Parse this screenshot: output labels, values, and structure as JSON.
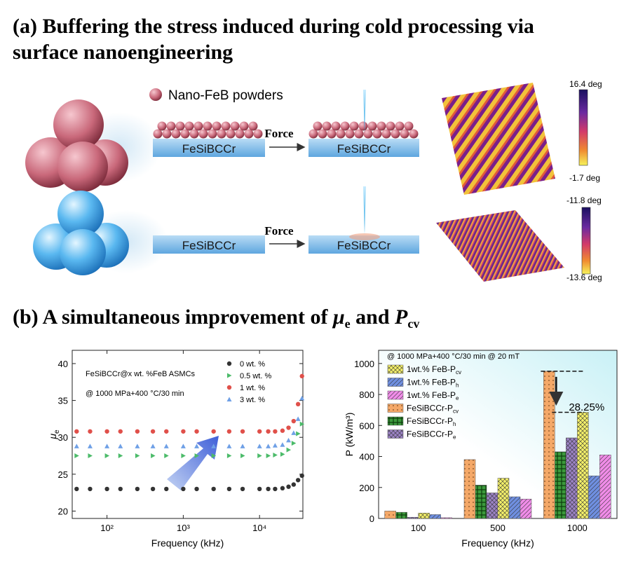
{
  "panel_a": {
    "title_lines": [
      "(a) Buffering the stress induced during cold processing via",
      "surface nanoengineering"
    ],
    "legend": "Nano-FeB powders",
    "substrates": [
      "FeSiBCCr",
      "FeSiBCCr",
      "FeSiBCCr",
      "FeSiBCCr"
    ],
    "forces": [
      "Force",
      "Force"
    ],
    "colorbars": [
      {
        "max": "16.4 deg",
        "min": "-1.7 deg"
      },
      {
        "max": "-11.8 deg",
        "min": "-13.6 deg"
      }
    ]
  },
  "panel_b": {
    "title_parts": [
      "(b) A simultaneous improvement of ",
      "μ",
      "e",
      " and ",
      "P",
      "cv"
    ]
  },
  "chart_data": [
    {
      "type": "scatter",
      "ylabel": "μ",
      "ylabel_sub": "e",
      "xlabel": "Frequency (kHz)",
      "annotations": [
        "FeSiBCCr@x wt. %FeB ASMCs",
        "@ 1000 MPa+400 °C/30 min"
      ],
      "log_x": true,
      "xlim": [
        35,
        37000
      ],
      "xticks": [
        {
          "value": 100,
          "label": "10²"
        },
        {
          "value": 1000,
          "label": "10³"
        },
        {
          "value": 10000,
          "label": "10⁴"
        }
      ],
      "ylim": [
        19,
        41.8
      ],
      "yticks": [
        20,
        25,
        30,
        35,
        40
      ],
      "legend": "top-right",
      "x": [
        40,
        60,
        100,
        150,
        250,
        400,
        600,
        1000,
        1500,
        2500,
        4000,
        6000,
        10000,
        13000,
        16000,
        20000,
        24000,
        28000,
        32000,
        36000
      ],
      "series": [
        {
          "name": "0 wt. %",
          "color": "#333333",
          "marker": "circle",
          "values": [
            23,
            23,
            23,
            23,
            23,
            23,
            23,
            23,
            23,
            23,
            23,
            23,
            23,
            23,
            23,
            23.1,
            23.3,
            23.6,
            24.2,
            24.8
          ]
        },
        {
          "name": "0.5 wt. %",
          "color": "#4cbb6a",
          "marker": "triangle-right",
          "values": [
            27.5,
            27.5,
            27.5,
            27.5,
            27.5,
            27.5,
            27.5,
            27.5,
            27.5,
            27.5,
            27.5,
            27.5,
            27.5,
            27.5,
            27.6,
            27.7,
            28.3,
            29.2,
            30.5,
            31.8
          ]
        },
        {
          "name": "1 wt. %",
          "color": "#e0504a",
          "marker": "circle",
          "values": [
            30.8,
            30.8,
            30.8,
            30.8,
            30.8,
            30.8,
            30.8,
            30.8,
            30.8,
            30.8,
            30.8,
            30.8,
            30.8,
            30.8,
            30.8,
            30.9,
            31.3,
            32.2,
            34.5,
            38.3
          ]
        },
        {
          "name": "3 wt. %",
          "color": "#6fa0e6",
          "marker": "triangle-up",
          "values": [
            28.8,
            28.8,
            28.8,
            28.8,
            28.8,
            28.8,
            28.8,
            28.8,
            28.8,
            28.8,
            28.8,
            28.8,
            28.8,
            28.8,
            28.9,
            29.0,
            29.6,
            30.6,
            32.5,
            35.3
          ]
        }
      ]
    },
    {
      "type": "bar",
      "ylabel": "P (kW/m³)",
      "xlabel": "Frequency (kHz)",
      "annotations": [
        "@ 1000 MPa+400 °C/30 min @ 20 mT",
        "28.25%"
      ],
      "categories": [
        "100",
        "500",
        "1000"
      ],
      "ylim": [
        0,
        1085
      ],
      "yticks": [
        0,
        200,
        400,
        600,
        800,
        1000
      ],
      "legend": "top-left",
      "series": [
        {
          "name": "FeSiBCCr-P",
          "name_sub": "cv",
          "color": "#f4a868",
          "hatch": "dots",
          "values": [
            48,
            380,
            950
          ]
        },
        {
          "name": "FeSiBCCr-P",
          "name_sub": "h",
          "color": "#3c9a3c",
          "hatch": "grid",
          "values": [
            40,
            215,
            430
          ]
        },
        {
          "name": "FeSiBCCr-P",
          "name_sub": "e",
          "color": "#9b82c4",
          "hatch": "cross",
          "values": [
            8,
            165,
            520
          ]
        },
        {
          "name": "1wt.% FeB-P",
          "name_sub": "cv",
          "color": "#f3ef6a",
          "hatch": "cross",
          "values": [
            35,
            260,
            685
          ]
        },
        {
          "name": "1wt.% FeB-P",
          "name_sub": "h",
          "color": "#6f8fe0",
          "hatch": "diag",
          "values": [
            25,
            140,
            275
          ]
        },
        {
          "name": "1wt.% FeB-P",
          "name_sub": "e",
          "color": "#f08ce8",
          "hatch": "diag",
          "values": [
            5,
            125,
            410
          ]
        }
      ]
    }
  ]
}
